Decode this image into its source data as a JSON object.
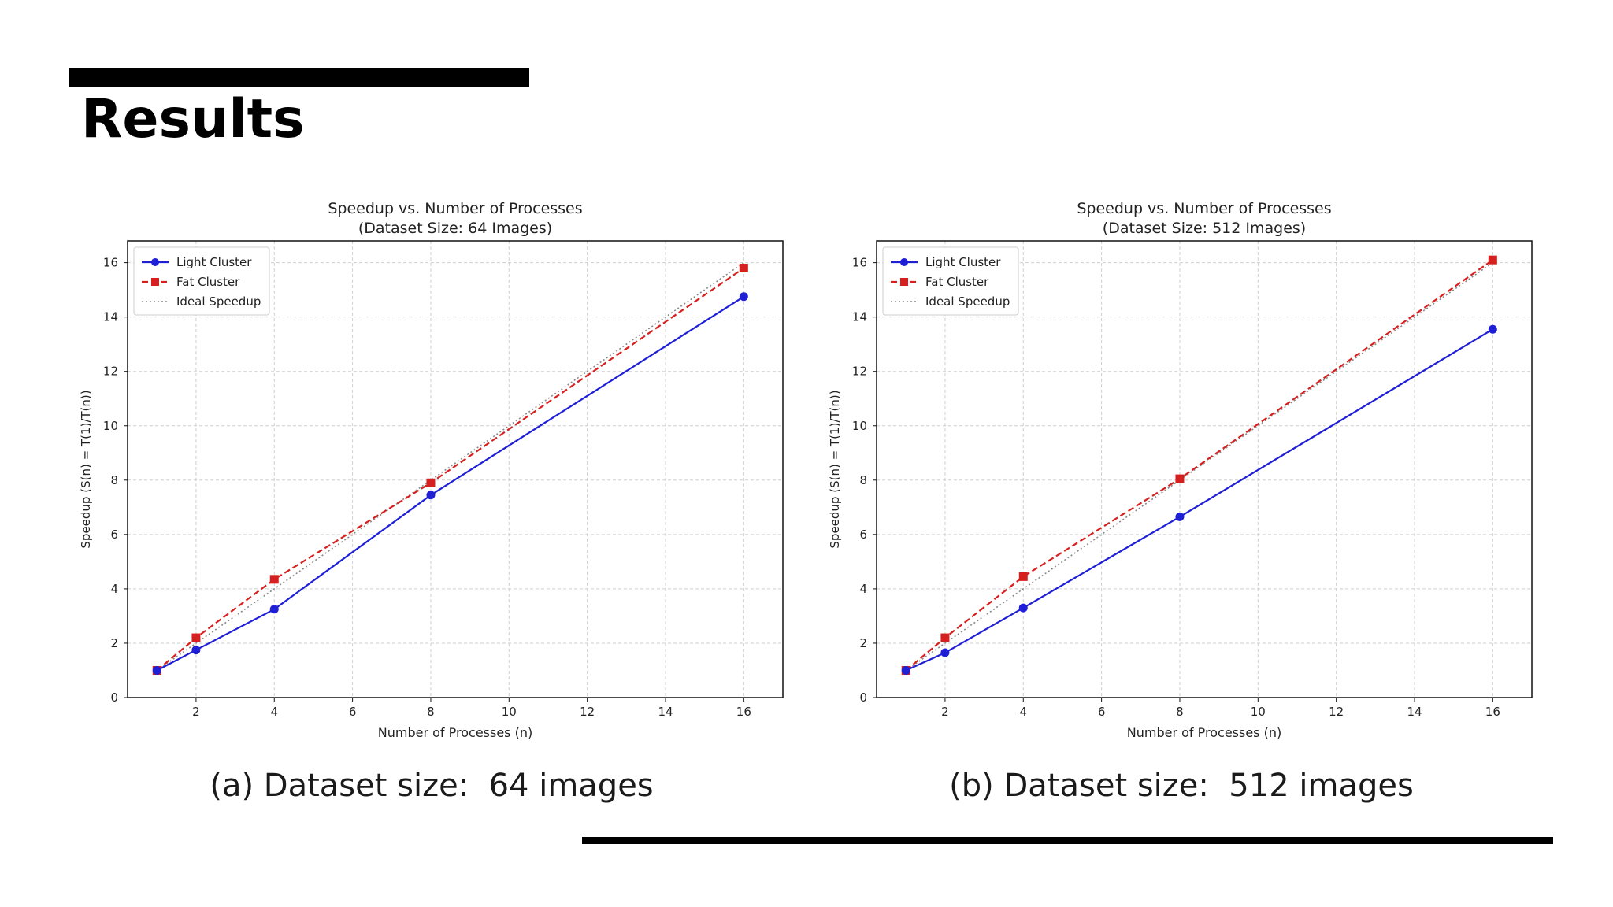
{
  "slide": {
    "title": "Results",
    "caption_a": "(a) Dataset size:  64 images",
    "caption_b": "(b) Dataset size:  512 images"
  },
  "chart_data": [
    {
      "type": "line",
      "title": "Speedup vs. Number of Processes",
      "subtitle": "(Dataset Size: 64 Images)",
      "xlabel": "Number of Processes (n)",
      "ylabel": "Speedup (S(n) = T(1)/T(n))",
      "x": [
        1,
        2,
        4,
        8,
        16
      ],
      "xlim": [
        0.25,
        17.0
      ],
      "ylim": [
        0,
        16.8
      ],
      "xticks": [
        2,
        4,
        6,
        8,
        10,
        12,
        14,
        16
      ],
      "yticks": [
        0,
        2,
        4,
        6,
        8,
        10,
        12,
        14,
        16
      ],
      "grid": true,
      "legend": "top-left",
      "series": [
        {
          "name": "Light Cluster",
          "values": [
            1.0,
            1.75,
            3.25,
            7.45,
            14.75
          ],
          "color": "#1f1fd6",
          "marker": "circle",
          "line": "solid"
        },
        {
          "name": "Fat Cluster",
          "values": [
            1.0,
            2.2,
            4.35,
            7.9,
            15.8
          ],
          "color": "#d62020",
          "marker": "square",
          "line": "dashed"
        },
        {
          "name": "Ideal Speedup",
          "values": [
            1,
            2,
            4,
            8,
            16
          ],
          "color": "#888888",
          "marker": "none",
          "line": "dotted"
        }
      ]
    },
    {
      "type": "line",
      "title": "Speedup vs. Number of Processes",
      "subtitle": "(Dataset Size: 512 Images)",
      "xlabel": "Number of Processes (n)",
      "ylabel": "Speedup (S(n) = T(1)/T(n))",
      "x": [
        1,
        2,
        4,
        8,
        16
      ],
      "xlim": [
        0.25,
        17.0
      ],
      "ylim": [
        0,
        16.8
      ],
      "xticks": [
        2,
        4,
        6,
        8,
        10,
        12,
        14,
        16
      ],
      "yticks": [
        0,
        2,
        4,
        6,
        8,
        10,
        12,
        14,
        16
      ],
      "grid": true,
      "legend": "top-left",
      "series": [
        {
          "name": "Light Cluster",
          "values": [
            1.0,
            1.65,
            3.3,
            6.65,
            13.55
          ],
          "color": "#1f1fd6",
          "marker": "circle",
          "line": "solid"
        },
        {
          "name": "Fat Cluster",
          "values": [
            1.0,
            2.2,
            4.45,
            8.05,
            16.1
          ],
          "color": "#d62020",
          "marker": "square",
          "line": "dashed"
        },
        {
          "name": "Ideal Speedup",
          "values": [
            1,
            2,
            4,
            8,
            16
          ],
          "color": "#888888",
          "marker": "none",
          "line": "dotted"
        }
      ]
    }
  ]
}
